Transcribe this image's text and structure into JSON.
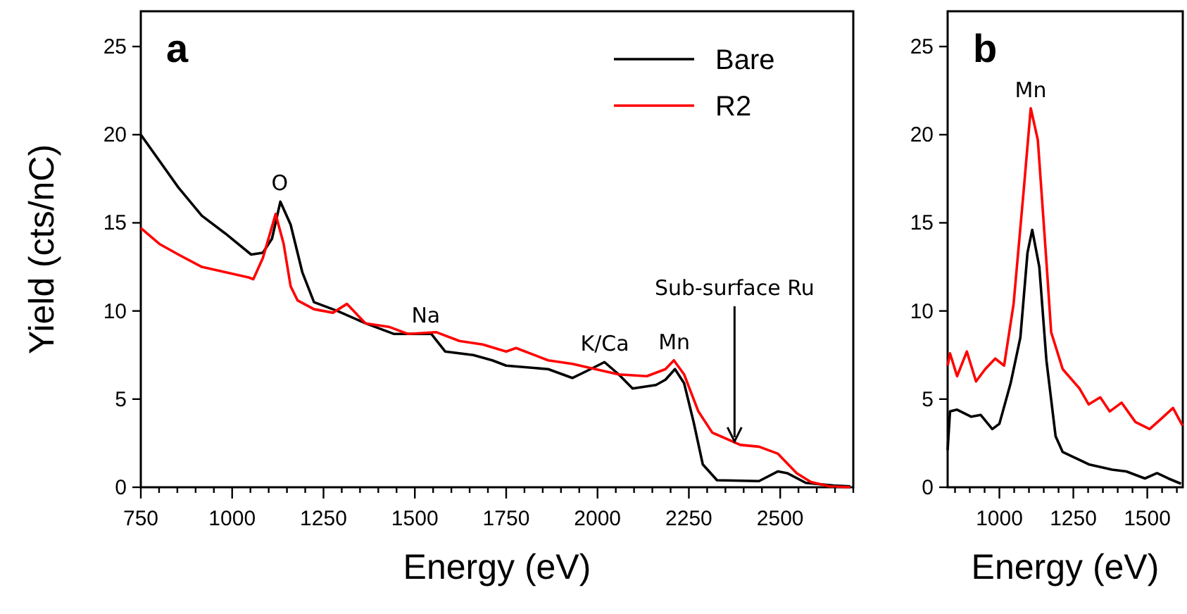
{
  "chart_data": [
    {
      "type": "line",
      "ylabel": "Yield (cts/nC)",
      "xlabel": "Energy (eV)",
      "legend": "top right",
      "grid": false,
      "xlim": [
        750,
        2700
      ],
      "ylim": [
        0,
        27
      ],
      "yticks": [
        0,
        5,
        10,
        15,
        20,
        25
      ],
      "xticks": [
        750,
        {
          "value": 800,
          "label": null
        },
        {
          "value": 850,
          "label": null
        },
        {
          "value": 900,
          "label": null
        },
        {
          "value": 950,
          "label": null
        },
        1000,
        {
          "value": 1050,
          "label": null
        },
        {
          "value": 1100,
          "label": null
        },
        {
          "value": 1150,
          "label": null
        },
        {
          "value": 1200,
          "label": null
        },
        1250,
        {
          "value": 1300,
          "label": null
        },
        {
          "value": 1350,
          "label": null
        },
        {
          "value": 1400,
          "label": null
        },
        {
          "value": 1450,
          "label": null
        },
        1500,
        {
          "value": 1550,
          "label": null
        },
        {
          "value": 1600,
          "label": null
        },
        {
          "value": 1650,
          "label": null
        },
        {
          "value": 1700,
          "label": null
        },
        1750,
        {
          "value": 1800,
          "label": null
        },
        {
          "value": 1850,
          "label": null
        },
        {
          "value": 1900,
          "label": null
        },
        {
          "value": 1950,
          "label": null
        },
        2000,
        {
          "value": 2050,
          "label": null
        },
        {
          "value": 2100,
          "label": null
        },
        {
          "value": 2150,
          "label": null
        },
        {
          "value": 2200,
          "label": null
        },
        2250,
        {
          "value": 2300,
          "label": null
        },
        {
          "value": 2350,
          "label": null
        },
        {
          "value": 2400,
          "label": null
        },
        {
          "value": 2450,
          "label": null
        },
        2500,
        {
          "value": 2550,
          "label": null
        },
        {
          "value": 2600,
          "label": null
        },
        {
          "value": 2650,
          "label": null
        },
        {
          "value": 2700,
          "label": null
        }
      ],
      "annotations": [
        "a",
        {
          "text": "O",
          "x": 1130,
          "y": 16.2
        },
        {
          "text": "Na",
          "x": 1530,
          "y": 8.7
        },
        {
          "text": "K/Ca",
          "x": 2020,
          "y": 7.1
        },
        {
          "text": "Mn",
          "x": 2210,
          "y": 7.2
        },
        {
          "text": "Sub-surface Ru",
          "x": 2375,
          "y": 2.6
        }
      ],
      "series": [
        {
          "name": "Bare",
          "color": "#000000",
          "x": [
            750,
            853,
            917,
            981,
            1052,
            1084,
            1109,
            1132,
            1160,
            1192,
            1224,
            1288,
            1365,
            1442,
            1494,
            1545,
            1583,
            1660,
            1712,
            1750,
            1865,
            1931,
            1981,
            2019,
            2058,
            2096,
            2160,
            2186,
            2212,
            2237,
            2263,
            2288,
            2327,
            2442,
            2494,
            2519,
            2570,
            2646,
            2692
          ],
          "values": [
            20.0,
            17.0,
            15.4,
            14.4,
            13.2,
            13.3,
            14.1,
            16.2,
            14.9,
            12.2,
            10.5,
            10.0,
            9.3,
            8.7,
            8.7,
            8.7,
            7.7,
            7.5,
            7.2,
            6.9,
            6.7,
            6.2,
            6.7,
            7.1,
            6.4,
            5.6,
            5.8,
            6.1,
            6.7,
            5.9,
            3.7,
            1.3,
            0.4,
            0.35,
            0.9,
            0.8,
            0.25,
            0.1,
            0.05
          ]
        },
        {
          "name": "R2",
          "color": "#ff0000",
          "x": [
            750,
            801,
            853,
            917,
            981,
            1045,
            1058,
            1084,
            1119,
            1141,
            1160,
            1179,
            1224,
            1276,
            1314,
            1365,
            1429,
            1481,
            1558,
            1622,
            1686,
            1750,
            1777,
            1865,
            1931,
            1994,
            2058,
            2135,
            2186,
            2209,
            2237,
            2276,
            2314,
            2391,
            2442,
            2494,
            2545,
            2584,
            2635,
            2692
          ],
          "values": [
            14.7,
            13.8,
            13.2,
            12.5,
            12.2,
            11.9,
            11.8,
            13.0,
            15.5,
            13.8,
            11.4,
            10.6,
            10.1,
            9.9,
            10.4,
            9.3,
            9.1,
            8.7,
            8.8,
            8.3,
            8.1,
            7.7,
            7.9,
            7.2,
            7.0,
            6.7,
            6.4,
            6.3,
            6.7,
            7.2,
            6.4,
            4.3,
            3.1,
            2.4,
            2.3,
            1.9,
            0.8,
            0.3,
            0.05,
            0
          ]
        }
      ]
    },
    {
      "type": "line",
      "xlabel": "Energy (eV)",
      "grid": false,
      "xlim": [
        825,
        1620
      ],
      "ylim": [
        0,
        27
      ],
      "yticks": [
        0,
        5,
        10,
        15,
        20,
        25
      ],
      "xticks": [
        {
          "value": 850,
          "label": null
        },
        {
          "value": 900,
          "label": null
        },
        {
          "value": 950,
          "label": null
        },
        1000,
        {
          "value": 1050,
          "label": null
        },
        {
          "value": 1100,
          "label": null
        },
        {
          "value": 1150,
          "label": null
        },
        {
          "value": 1200,
          "label": null
        },
        1250,
        {
          "value": 1300,
          "label": null
        },
        {
          "value": 1350,
          "label": null
        },
        {
          "value": 1400,
          "label": null
        },
        {
          "value": 1450,
          "label": null
        },
        1500,
        {
          "value": 1550,
          "label": null
        },
        {
          "value": 1600,
          "label": null
        }
      ],
      "annotations": [
        "b",
        {
          "text": "Mn",
          "x": 1106,
          "y": 21.5
        }
      ],
      "series": [
        {
          "color": "#000000",
          "x": [
            825,
            833,
            857,
            905,
            937,
            976,
            1000,
            1038,
            1071,
            1095,
            1111,
            1135,
            1159,
            1190,
            1214,
            1302,
            1381,
            1429,
            1492,
            1533,
            1571,
            1614
          ],
          "values": [
            2.1,
            4.3,
            4.4,
            4.0,
            4.1,
            3.3,
            3.6,
            5.9,
            8.5,
            13.3,
            14.6,
            12.5,
            7.2,
            2.9,
            2.0,
            1.3,
            1.0,
            0.9,
            0.5,
            0.8,
            0.5,
            0.2
          ]
        },
        {
          "color": "#ff0000",
          "x": [
            825,
            833,
            857,
            890,
            921,
            952,
            986,
            1016,
            1048,
            1083,
            1106,
            1130,
            1159,
            1175,
            1214,
            1271,
            1302,
            1341,
            1373,
            1413,
            1460,
            1508,
            1548,
            1587,
            1619
          ],
          "values": [
            6.9,
            7.6,
            6.3,
            7.7,
            6.0,
            6.7,
            7.3,
            6.9,
            10.4,
            17.0,
            21.5,
            19.7,
            12.8,
            8.8,
            6.7,
            5.6,
            4.7,
            5.1,
            4.3,
            4.8,
            3.7,
            3.3,
            3.9,
            4.5,
            3.5
          ]
        }
      ]
    }
  ]
}
